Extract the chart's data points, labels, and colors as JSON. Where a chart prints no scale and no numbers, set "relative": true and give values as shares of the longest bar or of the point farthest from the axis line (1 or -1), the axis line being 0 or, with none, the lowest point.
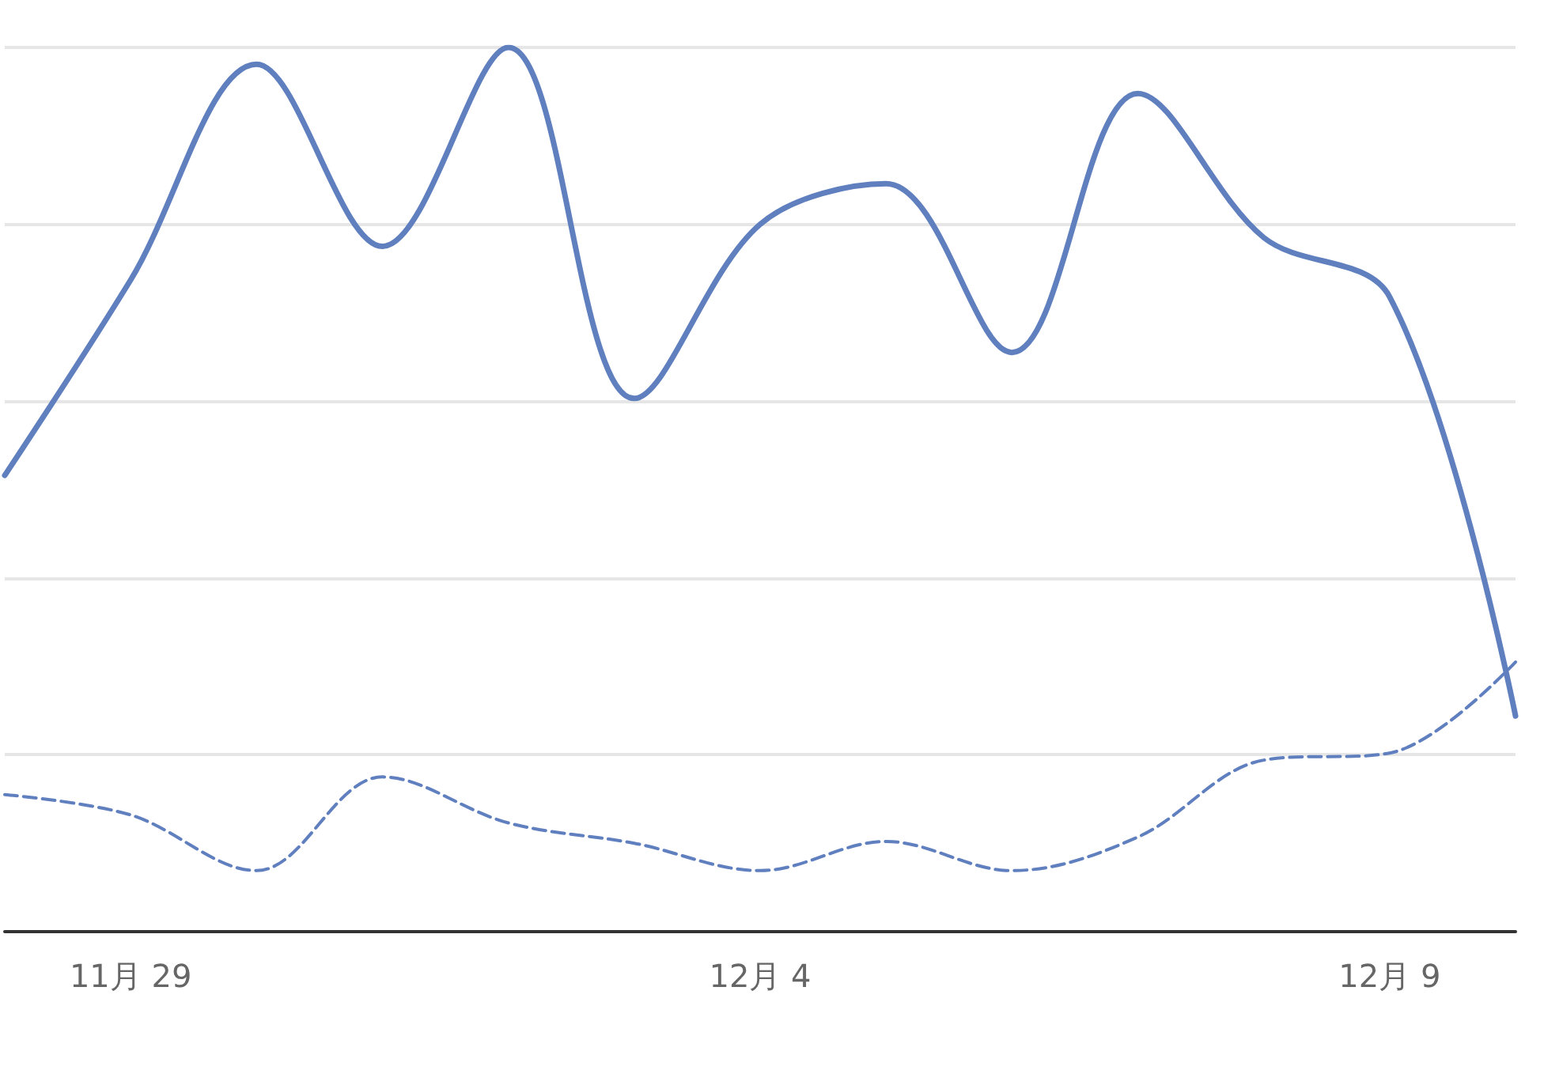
{
  "chart_data": {
    "type": "line",
    "relative": true,
    "grid": "y",
    "marker": "none",
    "categories": [
      null,
      "11月 29",
      null,
      null,
      null,
      null,
      "12月 4",
      null,
      null,
      null,
      null,
      "12月 9",
      null
    ],
    "series": [
      {
        "color": "#5f7fbf",
        "line_style": "solid",
        "values": [
          0.516,
          0.737,
          0.981,
          0.775,
          1,
          0.603,
          0.8,
          0.846,
          0.655,
          0.948,
          0.785,
          0.718,
          0.244
        ]
      },
      {
        "color": "#5f7fbf",
        "line_style": "dashed",
        "values": [
          0.155,
          0.132,
          0.069,
          0.175,
          0.123,
          0.1,
          0.069,
          0.102,
          0.069,
          0.107,
          0.194,
          0.202,
          0.305
        ]
      }
    ]
  }
}
